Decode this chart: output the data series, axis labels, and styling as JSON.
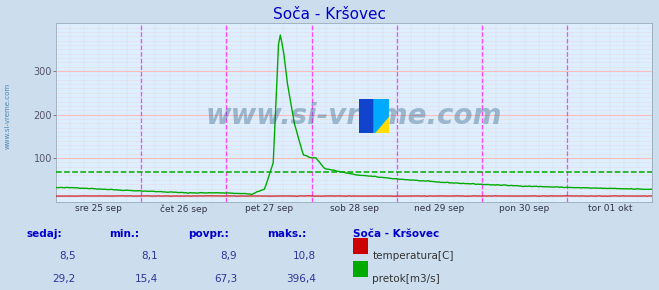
{
  "title": "Soča - Kršovec",
  "title_color": "#0000cc",
  "bg_color": "#ccdded",
  "plot_bg_color": "#ddeeff",
  "grid_color_h": "#ffbbbb",
  "grid_color_v": "#ff88ff",
  "ylim": [
    0,
    410
  ],
  "yticks": [
    100,
    200,
    300
  ],
  "temp_color": "#cc0000",
  "flow_color": "#00aa00",
  "flow_avg_line": 67.3,
  "flow_avg_color": "#00aa00",
  "watermark": "www.si-vreme.com",
  "watermark_color": "#1a5577",
  "watermark_alpha": 0.35,
  "left_label": "www.si-vreme.com",
  "left_label_color": "#3377aa",
  "vline_color": "#ff44ff",
  "x_ticks_labels": [
    "sre 25 sep",
    "čet 26 sep",
    "pet 27 sep",
    "sob 28 sep",
    "ned 29 sep",
    "pon 30 sep",
    "tor 01 okt"
  ],
  "x_ticks_pos": [
    0.5,
    1.5,
    2.5,
    3.5,
    4.5,
    5.5,
    6.5
  ],
  "bottom_label_color": "#0000cc",
  "bottom_value_color": "#333399",
  "station_name": "Soča - Kršovec",
  "temp_sedaj": "8,5",
  "temp_min": "8,1",
  "temp_povpr": "8,9",
  "temp_maks": "10,8",
  "flow_sedaj": "29,2",
  "flow_min": "15,4",
  "flow_povpr": "67,3",
  "flow_maks": "396,4",
  "legend_temp": "temperatura[C]",
  "legend_flow": "pretok[m3/s]",
  "logo_colors": [
    "#1144cc",
    "#ffdd00",
    "#00aaff"
  ]
}
